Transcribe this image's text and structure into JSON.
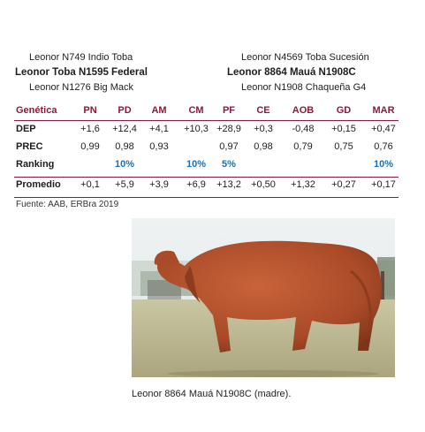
{
  "pedigree": {
    "sire_sire": "Leonor N749 Indio Toba",
    "sire": "Leonor Toba N1595 Federal",
    "sire_dam": "Leonor N1276 Big Mack",
    "dam_sire": "Leonor N4569 Toba Sucesión",
    "dam": "Leonor 8864 Mauá N1908C",
    "dam_dam": "Leonor N1908 Chaqueña G4"
  },
  "table": {
    "header_label": "Genética",
    "columns": [
      "PN",
      "PD",
      "AM",
      "CM",
      "PF",
      "CE",
      "AOB",
      "GD",
      "MAR"
    ],
    "rows": [
      {
        "label": "DEP",
        "values": [
          "+1,6",
          "+12,4",
          "+4,1",
          "+10,3",
          "+28,9",
          "+0,3",
          "-0,48",
          "+0,15",
          "+0,47"
        ]
      },
      {
        "label": "PREC",
        "values": [
          "0,99",
          "0,98",
          "0,93",
          "",
          "0,97",
          "0,98",
          "0,79",
          "0,75",
          "0,76"
        ]
      },
      {
        "label": "Ranking",
        "values": [
          "",
          "10%",
          "",
          "10%",
          "5%",
          "",
          "",
          "",
          "10%"
        ]
      }
    ],
    "promedio": {
      "label": "Promedio",
      "values": [
        "+0,1",
        "+5,9",
        "+3,9",
        "+6,9",
        "+13,2",
        "+0,50",
        "+1,32",
        "+0,27",
        "+0,17"
      ]
    }
  },
  "source": "Fuente: AAB, ERBra 2019",
  "caption": "Leonor 8864 Mauá N1908C (madre).",
  "colors": {
    "accent": "#8b1a3a",
    "ranking": "#1e6fb0"
  }
}
